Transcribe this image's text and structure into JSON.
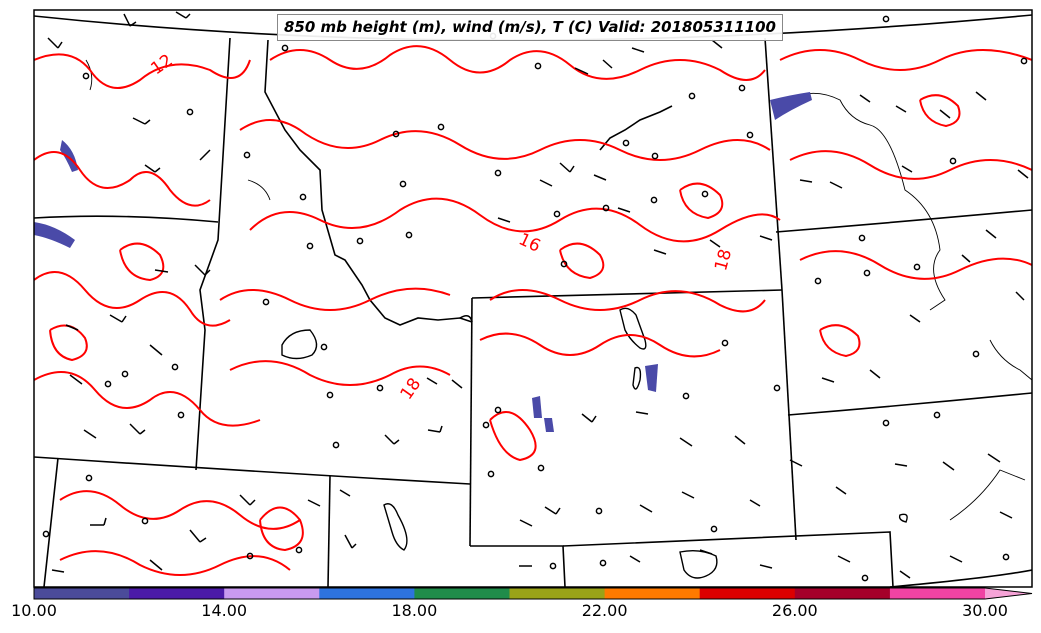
{
  "map": {
    "title": "850 mb height (m), wind (m/s), T (C) Valid: 201805311100",
    "contour_color": "#ff0000",
    "boundary_color": "#000000",
    "contour_labels": [
      "12",
      "16",
      "18",
      "18"
    ]
  },
  "colorbar": {
    "ticks": [
      "10.00",
      "14.00",
      "18.00",
      "22.00",
      "26.00",
      "30.00"
    ],
    "colors": [
      "#4b4b9a",
      "#4b1aa8",
      "#c99af0",
      "#2e73df",
      "#208c4a",
      "#9aa318",
      "#ff7a00",
      "#dc0000",
      "#a5002a",
      "#f043a3",
      "#f6a3d7"
    ]
  }
}
